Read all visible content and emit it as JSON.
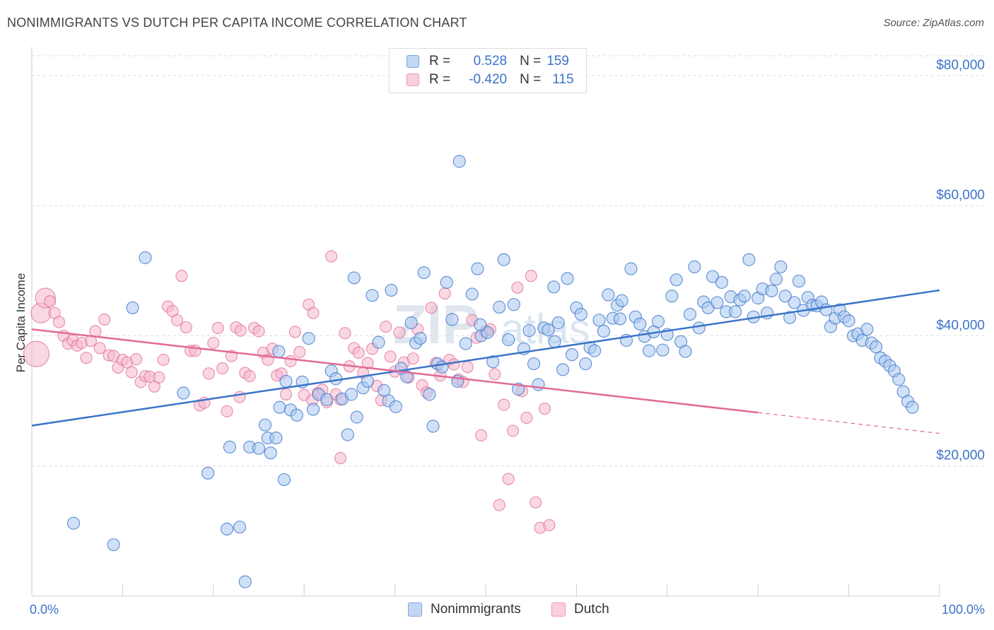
{
  "title": "NONIMMIGRANTS VS DUTCH PER CAPITA INCOME CORRELATION CHART",
  "source": "Source: ZipAtlas.com",
  "legend": {
    "series1": {
      "r_label": "R =",
      "r_value": "0.528",
      "n_label": "N =",
      "n_value": "159"
    },
    "series2": {
      "r_label": "R =",
      "r_value": "-0.420",
      "n_label": "N =",
      "n_value": "115"
    }
  },
  "bottom_legend": [
    "Nonimmigrants",
    "Dutch"
  ],
  "colors": {
    "blue": "#3b74c9",
    "blue_fill": "#aac8f0",
    "pink": "#e06a96",
    "pink_fill": "#f6b8cc"
  },
  "chart_data": {
    "type": "scatter",
    "title": "NONIMMIGRANTS VS DUTCH PER CAPITA INCOME CORRELATION CHART",
    "xlabel": "",
    "ylabel": "Per Capita Income",
    "xlim": [
      0,
      100
    ],
    "ylim": [
      0,
      84000
    ],
    "x_tick_labels": [
      "0.0%",
      "100.0%"
    ],
    "y_ticks": [
      20000,
      40000,
      60000,
      80000
    ],
    "y_tick_labels": [
      "$20,000",
      "$40,000",
      "$60,000",
      "$80,000"
    ],
    "series": [
      {
        "name": "Nonimmigrants",
        "trend": {
          "x0": 0,
          "y0": 26200,
          "x1": 100,
          "y1": 47000
        },
        "points": [
          [
            4.6,
            11200
          ],
          [
            9.0,
            7900
          ],
          [
            11.1,
            44300
          ],
          [
            12.5,
            52000
          ],
          [
            16.7,
            31200
          ],
          [
            19.4,
            18900
          ],
          [
            21.5,
            10300
          ],
          [
            21.8,
            22900
          ],
          [
            22.9,
            10600
          ],
          [
            23.5,
            2200
          ],
          [
            24.0,
            22900
          ],
          [
            25.0,
            22700
          ],
          [
            25.7,
            26300
          ],
          [
            26.0,
            24300
          ],
          [
            26.3,
            22000
          ],
          [
            26.9,
            24300
          ],
          [
            27.3,
            29000
          ],
          [
            27.8,
            17900
          ],
          [
            28.0,
            33000
          ],
          [
            28.5,
            28600
          ],
          [
            29.2,
            27800
          ],
          [
            29.8,
            32900
          ],
          [
            30.5,
            39600
          ],
          [
            31.0,
            28700
          ],
          [
            31.6,
            31000
          ],
          [
            32.5,
            30200
          ],
          [
            33.0,
            34600
          ],
          [
            33.5,
            33400
          ],
          [
            34.2,
            30300
          ],
          [
            34.8,
            24800
          ],
          [
            35.2,
            31000
          ],
          [
            35.5,
            48900
          ],
          [
            35.8,
            27500
          ],
          [
            36.5,
            32000
          ],
          [
            37.0,
            33000
          ],
          [
            37.5,
            46200
          ],
          [
            38.2,
            39000
          ],
          [
            38.8,
            31600
          ],
          [
            39.3,
            30000
          ],
          [
            39.6,
            47000
          ],
          [
            40.1,
            29100
          ],
          [
            40.7,
            35000
          ],
          [
            41.3,
            33700
          ],
          [
            41.8,
            42000
          ],
          [
            42.3,
            38900
          ],
          [
            42.8,
            39600
          ],
          [
            43.2,
            49700
          ],
          [
            43.8,
            31000
          ],
          [
            44.2,
            26100
          ],
          [
            44.7,
            35700
          ],
          [
            45.2,
            35200
          ],
          [
            45.7,
            48200
          ],
          [
            46.3,
            42500
          ],
          [
            46.9,
            33000
          ],
          [
            47.1,
            66800
          ],
          [
            47.8,
            38800
          ],
          [
            48.5,
            46400
          ],
          [
            49.1,
            50300
          ],
          [
            49.5,
            40000
          ],
          [
            50.2,
            40500
          ],
          [
            50.8,
            36000
          ],
          [
            51.5,
            44400
          ],
          [
            52.0,
            51700
          ],
          [
            52.5,
            39400
          ],
          [
            53.1,
            44800
          ],
          [
            53.6,
            31800
          ],
          [
            54.2,
            38000
          ],
          [
            54.8,
            40800
          ],
          [
            55.3,
            35700
          ],
          [
            55.8,
            32500
          ],
          [
            56.4,
            41200
          ],
          [
            56.9,
            40900
          ],
          [
            57.5,
            47500
          ],
          [
            58.0,
            42000
          ],
          [
            58.5,
            34800
          ],
          [
            59.0,
            48800
          ],
          [
            59.5,
            37100
          ],
          [
            60.0,
            44300
          ],
          [
            60.5,
            43300
          ],
          [
            61.0,
            35700
          ],
          [
            61.5,
            38200
          ],
          [
            62.0,
            37700
          ],
          [
            62.5,
            42400
          ],
          [
            63.0,
            40700
          ],
          [
            63.5,
            46300
          ],
          [
            64.0,
            42700
          ],
          [
            64.5,
            44700
          ],
          [
            65.0,
            45400
          ],
          [
            65.5,
            39300
          ],
          [
            66.0,
            50300
          ],
          [
            66.5,
            42900
          ],
          [
            67.0,
            41800
          ],
          [
            67.5,
            39900
          ],
          [
            68.0,
            37700
          ],
          [
            68.5,
            40600
          ],
          [
            69.0,
            42200
          ],
          [
            69.5,
            37800
          ],
          [
            70.0,
            40200
          ],
          [
            70.5,
            46100
          ],
          [
            71.0,
            48600
          ],
          [
            71.5,
            39100
          ],
          [
            72.0,
            37600
          ],
          [
            72.5,
            43300
          ],
          [
            73.0,
            50600
          ],
          [
            73.5,
            41200
          ],
          [
            74.0,
            45200
          ],
          [
            74.5,
            44300
          ],
          [
            75.0,
            49100
          ],
          [
            75.5,
            45100
          ],
          [
            76.0,
            48200
          ],
          [
            76.5,
            43700
          ],
          [
            77.0,
            46000
          ],
          [
            77.5,
            43700
          ],
          [
            78.0,
            45500
          ],
          [
            78.5,
            46100
          ],
          [
            79.0,
            51700
          ],
          [
            79.5,
            42900
          ],
          [
            80.0,
            45800
          ],
          [
            80.5,
            47200
          ],
          [
            81.0,
            43500
          ],
          [
            81.5,
            46900
          ],
          [
            82.0,
            48700
          ],
          [
            82.5,
            50600
          ],
          [
            83.0,
            46100
          ],
          [
            83.5,
            42800
          ],
          [
            84.0,
            45100
          ],
          [
            84.5,
            48400
          ],
          [
            85.0,
            43900
          ],
          [
            85.5,
            45900
          ],
          [
            86.0,
            44700
          ],
          [
            86.5,
            44600
          ],
          [
            87.0,
            45200
          ],
          [
            87.5,
            44000
          ],
          [
            88.0,
            41400
          ],
          [
            88.5,
            42700
          ],
          [
            89.0,
            44000
          ],
          [
            89.5,
            42900
          ],
          [
            90.0,
            42300
          ],
          [
            90.5,
            40000
          ],
          [
            91.0,
            40300
          ],
          [
            91.5,
            39300
          ],
          [
            92.0,
            41000
          ],
          [
            92.5,
            38900
          ],
          [
            93.0,
            38300
          ],
          [
            93.5,
            36600
          ],
          [
            94.0,
            36100
          ],
          [
            94.5,
            35400
          ],
          [
            95.0,
            34600
          ],
          [
            95.5,
            33300
          ],
          [
            96.0,
            31400
          ],
          [
            96.5,
            29900
          ],
          [
            97.0,
            29000
          ],
          [
            27.2,
            37600
          ],
          [
            64.8,
            42600
          ],
          [
            57.6,
            39100
          ],
          [
            49.4,
            41700
          ]
        ]
      },
      {
        "name": "Dutch",
        "trend_solid": {
          "x0": 0,
          "y0": 41000,
          "x1": 80,
          "y1": 28200
        },
        "trend_dashed": {
          "x0": 80,
          "y0": 28200,
          "x1": 100,
          "y1": 25000
        },
        "points": [
          [
            0.5,
            37200
          ],
          [
            1.0,
            43500
          ],
          [
            1.5,
            45800
          ],
          [
            2.0,
            45300
          ],
          [
            2.5,
            43500
          ],
          [
            3.0,
            42100
          ],
          [
            3.5,
            40000
          ],
          [
            4.0,
            38800
          ],
          [
            4.5,
            39300
          ],
          [
            5.0,
            38500
          ],
          [
            5.5,
            38900
          ],
          [
            6.0,
            36600
          ],
          [
            6.5,
            39200
          ],
          [
            7.0,
            40700
          ],
          [
            7.5,
            38100
          ],
          [
            8.0,
            42500
          ],
          [
            8.5,
            37000
          ],
          [
            9.0,
            36900
          ],
          [
            9.5,
            35100
          ],
          [
            10.0,
            36300
          ],
          [
            10.5,
            35900
          ],
          [
            11.0,
            34400
          ],
          [
            11.5,
            36400
          ],
          [
            12.0,
            32900
          ],
          [
            12.5,
            33800
          ],
          [
            13.0,
            33700
          ],
          [
            13.5,
            32200
          ],
          [
            14.0,
            33600
          ],
          [
            14.5,
            36300
          ],
          [
            15.0,
            44500
          ],
          [
            15.5,
            43800
          ],
          [
            16.0,
            42400
          ],
          [
            16.5,
            49200
          ],
          [
            17.0,
            41300
          ],
          [
            17.5,
            37700
          ],
          [
            18.0,
            37700
          ],
          [
            18.5,
            29300
          ],
          [
            19.0,
            29700
          ],
          [
            19.5,
            34200
          ],
          [
            20.0,
            38900
          ],
          [
            20.5,
            41200
          ],
          [
            21.0,
            35000
          ],
          [
            21.5,
            28400
          ],
          [
            22.0,
            36900
          ],
          [
            22.5,
            41300
          ],
          [
            23.0,
            40800
          ],
          [
            23.5,
            34300
          ],
          [
            24.0,
            33800
          ],
          [
            24.5,
            41200
          ],
          [
            25.0,
            40700
          ],
          [
            25.5,
            37400
          ],
          [
            26.0,
            36300
          ],
          [
            26.5,
            38000
          ],
          [
            27.0,
            33900
          ],
          [
            27.5,
            34200
          ],
          [
            28.0,
            31000
          ],
          [
            28.5,
            36100
          ],
          [
            29.0,
            40600
          ],
          [
            29.5,
            37500
          ],
          [
            30.0,
            30900
          ],
          [
            30.5,
            44800
          ],
          [
            31.0,
            43500
          ],
          [
            31.5,
            31200
          ],
          [
            32.0,
            31700
          ],
          [
            32.5,
            29800
          ],
          [
            33.0,
            52200
          ],
          [
            33.5,
            31000
          ],
          [
            34.0,
            30200
          ],
          [
            34.5,
            40400
          ],
          [
            35.0,
            35300
          ],
          [
            35.5,
            38100
          ],
          [
            36.0,
            37400
          ],
          [
            36.5,
            34300
          ],
          [
            37.0,
            35800
          ],
          [
            37.5,
            38000
          ],
          [
            38.0,
            32300
          ],
          [
            38.5,
            30100
          ],
          [
            39.0,
            41400
          ],
          [
            39.5,
            36800
          ],
          [
            40.0,
            34500
          ],
          [
            40.5,
            40500
          ],
          [
            41.0,
            35900
          ],
          [
            41.5,
            33600
          ],
          [
            42.0,
            36500
          ],
          [
            42.5,
            41000
          ],
          [
            43.0,
            32400
          ],
          [
            43.5,
            31300
          ],
          [
            44.0,
            44300
          ],
          [
            44.5,
            35800
          ],
          [
            45.0,
            33900
          ],
          [
            45.5,
            46500
          ],
          [
            46.0,
            36300
          ],
          [
            46.5,
            35600
          ],
          [
            47.0,
            33300
          ],
          [
            47.5,
            32900
          ],
          [
            48.0,
            35200
          ],
          [
            48.5,
            42400
          ],
          [
            49.0,
            39700
          ],
          [
            49.5,
            24700
          ],
          [
            50.0,
            40700
          ],
          [
            50.5,
            41000
          ],
          [
            51.0,
            34100
          ],
          [
            51.5,
            14000
          ],
          [
            52.0,
            29400
          ],
          [
            52.5,
            18000
          ],
          [
            53.0,
            25400
          ],
          [
            53.5,
            47400
          ],
          [
            54.0,
            31500
          ],
          [
            54.5,
            27400
          ],
          [
            55.0,
            49200
          ],
          [
            55.5,
            14400
          ],
          [
            56.0,
            10500
          ],
          [
            56.5,
            28800
          ],
          [
            57.0,
            10900
          ],
          [
            34.0,
            21200
          ],
          [
            30.9,
            30100
          ],
          [
            22.9,
            30600
          ]
        ]
      }
    ]
  }
}
